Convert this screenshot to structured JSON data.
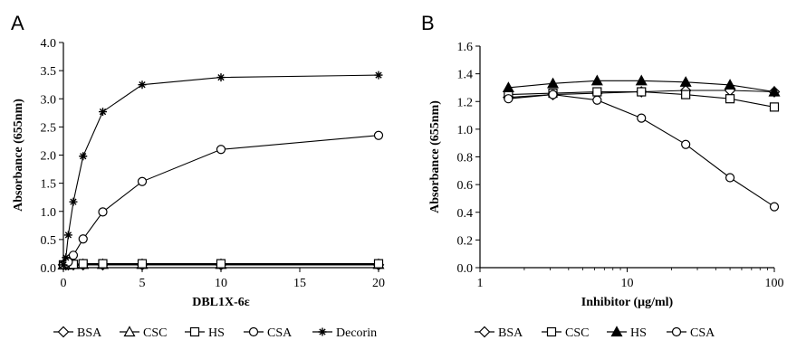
{
  "figure": {
    "panel_a_title": "A",
    "panel_b_title": "B"
  },
  "chart_data": [
    {
      "type": "line",
      "panel": "A",
      "title": "A",
      "xlabel": "DBL1X-6ε",
      "ylabel": "Absorbance  (655nm)",
      "x_scale": "linear",
      "xlim": [
        0,
        20
      ],
      "ylim": [
        0,
        4.0
      ],
      "x_ticks": [
        0,
        5,
        10,
        15,
        20
      ],
      "y_ticks": [
        0.0,
        0.5,
        1.0,
        1.5,
        2.0,
        2.5,
        3.0,
        3.5,
        4.0
      ],
      "x_tick_labels": [
        "0",
        "5",
        "10",
        "15",
        "20"
      ],
      "y_tick_labels": [
        "0.0",
        "0.5",
        "1.0",
        "1.5",
        "2.0",
        "2.5",
        "3.0",
        "3.5",
        "4.0"
      ],
      "grid": false,
      "legend_position": "bottom",
      "x": [
        0,
        0.16,
        0.31,
        0.63,
        1.25,
        2.5,
        5,
        10,
        20
      ],
      "series": [
        {
          "name": "BSA",
          "marker": "diamond-open",
          "values": [
            0.05,
            0.05,
            0.05,
            0.05,
            0.05,
            0.05,
            0.05,
            0.05,
            0.05
          ]
        },
        {
          "name": "CSC",
          "marker": "triangle-open",
          "values": [
            0.05,
            0.05,
            0.06,
            0.06,
            0.06,
            0.06,
            0.06,
            0.06,
            0.06
          ]
        },
        {
          "name": "HS",
          "marker": "square-open",
          "values": [
            0.05,
            0.05,
            0.06,
            0.06,
            0.07,
            0.07,
            0.07,
            0.07,
            0.07
          ]
        },
        {
          "name": "CSA",
          "marker": "circle-open",
          "values": [
            0.05,
            0.07,
            0.1,
            0.22,
            0.51,
            0.99,
            1.53,
            2.1,
            2.35
          ]
        },
        {
          "name": "Decorin",
          "marker": "asterisk",
          "values": [
            0.05,
            0.18,
            0.58,
            1.17,
            1.98,
            2.77,
            3.25,
            3.38,
            3.42
          ]
        }
      ]
    },
    {
      "type": "line",
      "panel": "B",
      "title": "B",
      "xlabel": "Inhibitor (μg/ml)",
      "ylabel": "Absorbance  (655nm)",
      "x_scale": "log",
      "xlim": [
        1,
        100
      ],
      "ylim": [
        0,
        1.6
      ],
      "x_ticks": [
        1,
        10,
        100
      ],
      "y_ticks": [
        0.0,
        0.2,
        0.4,
        0.6,
        0.8,
        1.0,
        1.2,
        1.4,
        1.6
      ],
      "x_tick_labels": [
        "1",
        "10",
        "100"
      ],
      "y_tick_labels": [
        "0.0",
        "0.2",
        "0.4",
        "0.6",
        "0.8",
        "1.0",
        "1.2",
        "1.4",
        "1.6"
      ],
      "grid": false,
      "legend_position": "bottom",
      "x": [
        1.56,
        3.13,
        6.25,
        12.5,
        25,
        50,
        100
      ],
      "series": [
        {
          "name": "BSA",
          "marker": "diamond-open",
          "values": [
            1.23,
            1.25,
            1.26,
            1.27,
            1.28,
            1.28,
            1.27
          ]
        },
        {
          "name": "CSC",
          "marker": "square-open",
          "values": [
            1.25,
            1.26,
            1.27,
            1.27,
            1.25,
            1.22,
            1.16
          ]
        },
        {
          "name": "HS",
          "marker": "triangle-filled",
          "values": [
            1.3,
            1.33,
            1.35,
            1.35,
            1.34,
            1.32,
            1.27
          ]
        },
        {
          "name": "CSA",
          "marker": "circle-open",
          "values": [
            1.22,
            1.25,
            1.21,
            1.08,
            0.89,
            0.65,
            0.44
          ]
        }
      ]
    }
  ]
}
